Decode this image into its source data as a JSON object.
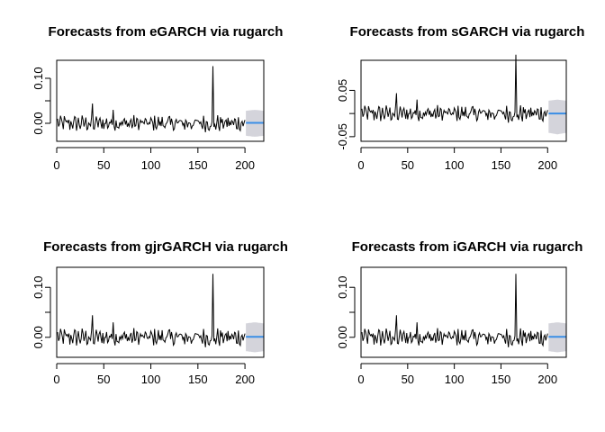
{
  "chart_data": [
    {
      "type": "line",
      "title": "Forecasts from eGARCH via rugarch",
      "xlim": [
        0,
        220
      ],
      "ylim": [
        -0.04,
        0.14
      ],
      "x_ticks": [
        "0",
        "50",
        "100",
        "150",
        "200"
      ],
      "y_ticks": [
        "0.00",
        "0.10"
      ],
      "history": {
        "x_start": 1,
        "x_end": 200,
        "spike": {
          "x": 166,
          "y": 0.127
        }
      },
      "forecast": {
        "x_start": 201,
        "x_end": 220,
        "mean": 0.001,
        "band_upper": 0.03,
        "band_lower": -0.03
      },
      "colors": {
        "history": "#000000",
        "forecast": "#3a8ee6",
        "band": "#d4d4db"
      }
    },
    {
      "type": "line",
      "title": "Forecasts from sGARCH via rugarch",
      "xlim": [
        0,
        220
      ],
      "ylim": [
        -0.06,
        0.115
      ],
      "x_ticks": [
        "0",
        "50",
        "100",
        "150",
        "200"
      ],
      "y_ticks": [
        "-0.05",
        "0.05"
      ],
      "history": {
        "x_start": 1,
        "x_end": 200,
        "spike": {
          "x": 166,
          "y": 0.127
        }
      },
      "forecast": {
        "x_start": 201,
        "x_end": 220,
        "mean": 0.0,
        "band_upper": 0.03,
        "band_lower": -0.045
      },
      "colors": {
        "history": "#000000",
        "forecast": "#3a8ee6",
        "band": "#d4d4db"
      }
    },
    {
      "type": "line",
      "title": "Forecasts from gjrGARCH via rugarch",
      "xlim": [
        0,
        220
      ],
      "ylim": [
        -0.04,
        0.14
      ],
      "x_ticks": [
        "0",
        "50",
        "100",
        "150",
        "200"
      ],
      "y_ticks": [
        "0.00",
        "0.10"
      ],
      "history": {
        "x_start": 1,
        "x_end": 200,
        "spike": {
          "x": 166,
          "y": 0.127
        }
      },
      "forecast": {
        "x_start": 201,
        "x_end": 220,
        "mean": 0.001,
        "band_upper": 0.03,
        "band_lower": -0.03
      },
      "colors": {
        "history": "#000000",
        "forecast": "#3a8ee6",
        "band": "#d4d4db"
      }
    },
    {
      "type": "line",
      "title": "Forecasts from iGARCH via rugarch",
      "xlim": [
        0,
        220
      ],
      "ylim": [
        -0.04,
        0.14
      ],
      "x_ticks": [
        "0",
        "50",
        "100",
        "150",
        "200"
      ],
      "y_ticks": [
        "0.00",
        "0.10"
      ],
      "history": {
        "x_start": 1,
        "x_end": 200,
        "spike": {
          "x": 166,
          "y": 0.127
        }
      },
      "forecast": {
        "x_start": 201,
        "x_end": 220,
        "mean": 0.001,
        "band_upper": 0.03,
        "band_lower": -0.03
      },
      "colors": {
        "history": "#000000",
        "forecast": "#3a8ee6",
        "band": "#d4d4db"
      }
    }
  ]
}
